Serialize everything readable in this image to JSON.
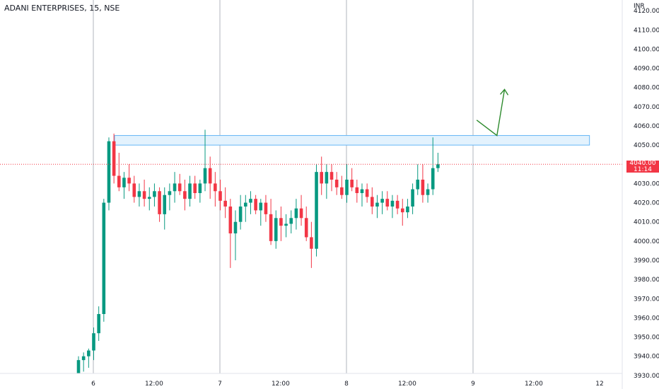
{
  "header": {
    "title": "ADANI ENTERPRISES, 15, NSE"
  },
  "chart_data": {
    "type": "candlestick",
    "symbol": "ADANI ENTERPRISES",
    "interval": "15",
    "exchange": "NSE",
    "currency": "INR",
    "ylim": [
      3920,
      4130
    ],
    "y_ticks": [
      3930,
      3940,
      3950,
      3960,
      3970,
      3980,
      3990,
      4000,
      4010,
      4020,
      4030,
      4040,
      4050,
      4060,
      4070,
      4080,
      4090,
      4100,
      4110,
      4120
    ],
    "y_tick_labels": [
      "3930.00",
      "3940.00",
      "3950.00",
      "3960.00",
      "3970.00",
      "3980.00",
      "3990.00",
      "4000.00",
      "4010.00",
      "4020.00",
      "4030.00",
      "4040.00",
      "4050.00",
      "4060.00",
      "4070.00",
      "4080.00",
      "4090.00",
      "4100.00",
      "4110.00",
      "4120.00"
    ],
    "x_ticks": [
      {
        "label": "12:00",
        "bar": -24
      },
      {
        "label": "6",
        "bar": 0
      },
      {
        "label": "12:00",
        "bar": 12
      },
      {
        "label": "7",
        "bar": 25
      },
      {
        "label": "12:00",
        "bar": 37
      },
      {
        "label": "8",
        "bar": 50
      },
      {
        "label": "12:00",
        "bar": 62
      },
      {
        "label": "9",
        "bar": 75
      },
      {
        "label": "12:00",
        "bar": 87
      },
      {
        "label": "12",
        "bar": 100
      }
    ],
    "session_separators": [
      0,
      25,
      50,
      75
    ],
    "candles": [
      [
        3925,
        3930,
        3920,
        3928
      ],
      [
        3928,
        3940,
        3924,
        3938
      ],
      [
        3938,
        3942,
        3932,
        3940
      ],
      [
        3940,
        3944,
        3934,
        3943
      ],
      [
        3943,
        3955,
        3938,
        3952
      ],
      [
        3952,
        3966,
        3948,
        3962
      ],
      [
        3962,
        4022,
        3958,
        4020
      ],
      [
        4020,
        4054,
        4016,
        4052
      ],
      [
        4052,
        4056,
        4030,
        4034
      ],
      [
        4034,
        4046,
        4026,
        4028
      ],
      [
        4028,
        4036,
        4022,
        4033
      ],
      [
        4033,
        4040,
        4026,
        4030
      ],
      [
        4030,
        4034,
        4020,
        4023
      ],
      [
        4023,
        4030,
        4018,
        4026
      ],
      [
        4026,
        4032,
        4018,
        4022
      ],
      [
        4022,
        4028,
        4016,
        4023
      ],
      [
        4023,
        4030,
        4018,
        4026
      ],
      [
        4026,
        4028,
        4010,
        4014
      ],
      [
        4014,
        4028,
        4006,
        4024
      ],
      [
        4024,
        4030,
        4016,
        4026
      ],
      [
        4026,
        4036,
        4020,
        4030
      ],
      [
        4030,
        4035,
        4024,
        4026
      ],
      [
        4026,
        4032,
        4016,
        4022
      ],
      [
        4022,
        4034,
        4018,
        4030
      ],
      [
        4030,
        4034,
        4022,
        4025
      ],
      [
        4025,
        4032,
        4020,
        4030
      ],
      [
        4030,
        4058,
        4026,
        4038
      ],
      [
        4038,
        4044,
        4022,
        4030
      ],
      [
        4030,
        4036,
        4018,
        4026
      ],
      [
        4026,
        4032,
        4016,
        4021
      ],
      [
        4021,
        4028,
        4012,
        4018
      ],
      [
        4018,
        4022,
        3986,
        4004
      ],
      [
        4004,
        4016,
        3990,
        4010
      ],
      [
        4010,
        4024,
        4006,
        4018
      ],
      [
        4018,
        4024,
        4010,
        4020
      ],
      [
        4020,
        4026,
        4014,
        4022
      ],
      [
        4022,
        4024,
        4014,
        4016
      ],
      [
        4016,
        4022,
        4008,
        4020
      ],
      [
        4020,
        4024,
        4010,
        4014
      ],
      [
        4014,
        4022,
        3998,
        4000
      ],
      [
        4000,
        4016,
        3996,
        4012
      ],
      [
        4012,
        4018,
        4000,
        4008
      ],
      [
        4008,
        4014,
        4002,
        4009
      ],
      [
        4009,
        4016,
        4004,
        4012
      ],
      [
        4012,
        4022,
        4006,
        4017
      ],
      [
        4017,
        4024,
        4008,
        4012
      ],
      [
        4012,
        4018,
        4000,
        4002
      ],
      [
        4002,
        4010,
        3986,
        3996
      ],
      [
        3996,
        4040,
        3992,
        4036
      ],
      [
        4036,
        4044,
        4024,
        4030
      ],
      [
        4030,
        4040,
        4022,
        4036
      ],
      [
        4036,
        4040,
        4026,
        4032
      ],
      [
        4032,
        4036,
        4024,
        4028
      ],
      [
        4028,
        4034,
        4022,
        4024
      ],
      [
        4024,
        4040,
        4020,
        4032
      ],
      [
        4032,
        4038,
        4026,
        4028
      ],
      [
        4028,
        4032,
        4020,
        4025
      ],
      [
        4025,
        4030,
        4018,
        4027
      ],
      [
        4027,
        4030,
        4020,
        4023
      ],
      [
        4023,
        4028,
        4014,
        4018
      ],
      [
        4018,
        4024,
        4012,
        4020
      ],
      [
        4020,
        4026,
        4014,
        4022
      ],
      [
        4022,
        4026,
        4016,
        4018
      ],
      [
        4018,
        4024,
        4012,
        4021
      ],
      [
        4021,
        4024,
        4014,
        4017
      ],
      [
        4017,
        4022,
        4008,
        4015
      ],
      [
        4015,
        4022,
        4012,
        4018
      ],
      [
        4018,
        4030,
        4014,
        4027
      ],
      [
        4027,
        4040,
        4024,
        4032
      ],
      [
        4032,
        4040,
        4020,
        4024
      ],
      [
        4024,
        4030,
        4020,
        4027
      ],
      [
        4027,
        4054,
        4024,
        4038
      ],
      [
        4038,
        4046,
        4036,
        4040
      ]
    ],
    "zone": {
      "from_bar": 0,
      "to_bar": 98,
      "low": 4050,
      "high": 4055
    },
    "arrow_path": [
      [
        76,
        4063
      ],
      [
        80,
        4055
      ],
      [
        81.5,
        4079
      ]
    ],
    "last_price": 4040,
    "last_price_label": "4040.00",
    "countdown": "11:14",
    "colors": {
      "up": "#089981",
      "down": "#f23645",
      "zone_fill": "#e3f2fd",
      "zone_stroke": "#64b5f6",
      "arrow": "#2e8b2e",
      "separator": "#b2b5be",
      "price_line": "#f23645"
    }
  }
}
